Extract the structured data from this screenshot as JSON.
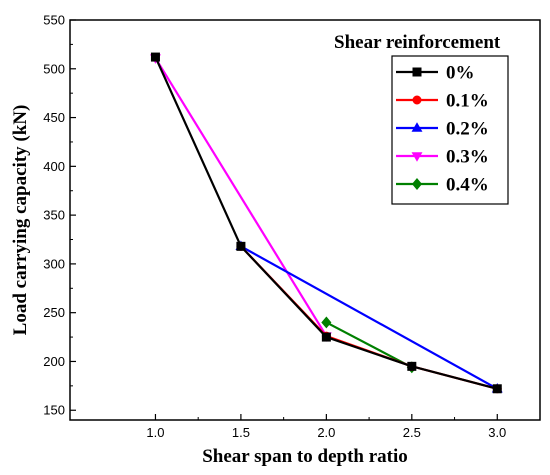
{
  "chart_data": {
    "type": "line",
    "xlabel": "Shear span to depth ratio",
    "ylabel": "Load carrying capacity (kN)",
    "xlim": [
      0.5,
      3.25
    ],
    "ylim": [
      140,
      550
    ],
    "xticks": [
      "1.0",
      "1.5",
      "2.0",
      "2.5",
      "3.0"
    ],
    "yticks": [
      "150",
      "200",
      "250",
      "300",
      "350",
      "400",
      "450",
      "500",
      "550"
    ],
    "grid": false,
    "legend": {
      "title": "Shear reinforcement",
      "position": "top-right"
    },
    "series": [
      {
        "name": "0%",
        "color": "#000000",
        "marker": "square",
        "x": [
          1.0,
          1.5,
          2.0,
          2.5,
          3.0
        ],
        "y": [
          512,
          318,
          225,
          195,
          172
        ]
      },
      {
        "name": "0.1%",
        "color": "#ff0000",
        "marker": "circle",
        "x": [
          1.5,
          2.0,
          2.5,
          3.0
        ],
        "y": [
          318,
          226,
          195,
          172
        ]
      },
      {
        "name": "0.2%",
        "color": "#0000ff",
        "marker": "triangle-up",
        "x": [
          1.5,
          3.0
        ],
        "y": [
          318,
          172
        ]
      },
      {
        "name": "0.3%",
        "color": "#ff00ff",
        "marker": "triangle-down",
        "x": [
          1.0,
          2.0
        ],
        "y": [
          511,
          226
        ]
      },
      {
        "name": "0.4%",
        "color": "#008000",
        "marker": "diamond",
        "x": [
          2.0,
          2.5
        ],
        "y": [
          240,
          194
        ]
      }
    ]
  }
}
